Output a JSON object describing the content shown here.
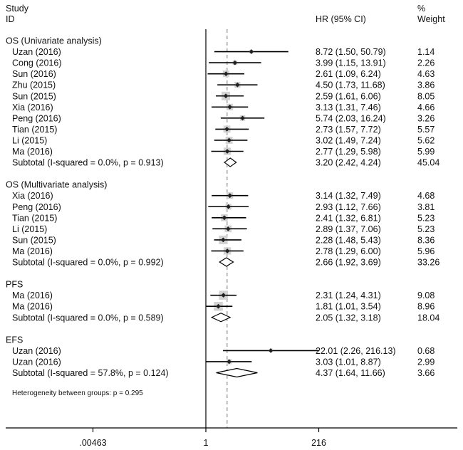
{
  "chart_data": {
    "type": "forest",
    "header": {
      "study": "Study",
      "id": "ID",
      "hr": "HR (95% CI)",
      "pct": "%",
      "weight": "Weight"
    },
    "x_axis": {
      "scale": "log",
      "ticks": [
        {
          "value": 0.00463,
          "label": ".00463"
        },
        {
          "value": 1,
          "label": "1"
        },
        {
          "value": 216,
          "label": "216"
        }
      ],
      "no_effect_line": 1,
      "overall_estimate_line": 2.75
    },
    "rows": [
      {
        "type": "group",
        "label": "OS (Univariate analysis)"
      },
      {
        "type": "study",
        "label": "Uzan (2016)",
        "hr": 8.72,
        "lo": 1.5,
        "hi": 50.79,
        "ci_text": "8.72 (1.50, 50.79)",
        "weight": "1.14",
        "w": 1.14
      },
      {
        "type": "study",
        "label": "Cong (2016)",
        "hr": 3.99,
        "lo": 1.15,
        "hi": 13.91,
        "ci_text": "3.99 (1.15, 13.91)",
        "weight": "2.26",
        "w": 2.26
      },
      {
        "type": "study",
        "label": "Sun (2016)",
        "hr": 2.61,
        "lo": 1.09,
        "hi": 6.24,
        "ci_text": "2.61 (1.09, 6.24)",
        "weight": "4.63",
        "w": 4.63
      },
      {
        "type": "study",
        "label": "Zhu (2015)",
        "hr": 4.5,
        "lo": 1.73,
        "hi": 11.68,
        "ci_text": "4.50 (1.73, 11.68)",
        "weight": "3.86",
        "w": 3.86
      },
      {
        "type": "study",
        "label": "Sun (2015)",
        "hr": 2.59,
        "lo": 1.61,
        "hi": 6.06,
        "ci_text": "2.59 (1.61, 6.06)",
        "weight": "8.05",
        "w": 8.05
      },
      {
        "type": "study",
        "label": "Xia (2016)",
        "hr": 3.13,
        "lo": 1.31,
        "hi": 7.46,
        "ci_text": "3.13 (1.31, 7.46)",
        "weight": "4.66",
        "w": 4.66
      },
      {
        "type": "study",
        "label": "Peng (2016)",
        "hr": 5.74,
        "lo": 2.03,
        "hi": 16.24,
        "ci_text": "5.74 (2.03, 16.24)",
        "weight": "3.26",
        "w": 3.26
      },
      {
        "type": "study",
        "label": "Tian (2015)",
        "hr": 2.73,
        "lo": 1.57,
        "hi": 7.72,
        "ci_text": "2.73 (1.57, 7.72)",
        "weight": "5.57",
        "w": 5.57
      },
      {
        "type": "study",
        "label": "Li (2015)",
        "hr": 3.02,
        "lo": 1.49,
        "hi": 7.24,
        "ci_text": "3.02 (1.49, 7.24)",
        "weight": "5.62",
        "w": 5.62
      },
      {
        "type": "study",
        "label": "Ma (2016)",
        "hr": 2.77,
        "lo": 1.29,
        "hi": 5.98,
        "ci_text": "2.77 (1.29, 5.98)",
        "weight": "5.99",
        "w": 5.99
      },
      {
        "type": "subtotal",
        "label": "Subtotal  (I-squared = 0.0%, p = 0.913)",
        "hr": 3.2,
        "lo": 2.42,
        "hi": 4.24,
        "ci_text": "3.20 (2.42, 4.24)",
        "weight": "45.04"
      },
      {
        "type": "blank"
      },
      {
        "type": "group",
        "label": "OS (Multivariate analysis)"
      },
      {
        "type": "study",
        "label": "Xia (2016)",
        "hr": 3.14,
        "lo": 1.32,
        "hi": 7.49,
        "ci_text": "3.14 (1.32, 7.49)",
        "weight": "4.68",
        "w": 4.68
      },
      {
        "type": "study",
        "label": "Peng (2016)",
        "hr": 2.93,
        "lo": 1.12,
        "hi": 7.66,
        "ci_text": "2.93 (1.12, 7.66)",
        "weight": "3.81",
        "w": 3.81
      },
      {
        "type": "study",
        "label": "Tian (2015)",
        "hr": 2.41,
        "lo": 1.32,
        "hi": 6.81,
        "ci_text": "2.41 (1.32, 6.81)",
        "weight": "5.23",
        "w": 5.23
      },
      {
        "type": "study",
        "label": "Li (2015)",
        "hr": 2.89,
        "lo": 1.37,
        "hi": 7.06,
        "ci_text": "2.89 (1.37, 7.06)",
        "weight": "5.23",
        "w": 5.23
      },
      {
        "type": "study",
        "label": "Sun (2015)",
        "hr": 2.28,
        "lo": 1.48,
        "hi": 5.43,
        "ci_text": "2.28 (1.48, 5.43)",
        "weight": "8.36",
        "w": 8.36
      },
      {
        "type": "study",
        "label": "Ma (2016)",
        "hr": 2.78,
        "lo": 1.29,
        "hi": 6.0,
        "ci_text": "2.78 (1.29, 6.00)",
        "weight": "5.96",
        "w": 5.96
      },
      {
        "type": "subtotal",
        "label": "Subtotal  (I-squared = 0.0%, p = 0.992)",
        "hr": 2.66,
        "lo": 1.92,
        "hi": 3.69,
        "ci_text": "2.66 (1.92, 3.69)",
        "weight": "33.26"
      },
      {
        "type": "blank"
      },
      {
        "type": "group",
        "label": "PFS"
      },
      {
        "type": "study",
        "label": "Ma (2016)",
        "hr": 2.31,
        "lo": 1.24,
        "hi": 4.31,
        "ci_text": "2.31 (1.24, 4.31)",
        "weight": "9.08",
        "w": 9.08
      },
      {
        "type": "study",
        "label": "Ma (2016)",
        "hr": 1.81,
        "lo": 1.01,
        "hi": 3.54,
        "ci_text": "1.81 (1.01, 3.54)",
        "weight": "8.96",
        "w": 8.96
      },
      {
        "type": "subtotal",
        "label": "Subtotal  (I-squared = 0.0%, p = 0.589)",
        "hr": 2.05,
        "lo": 1.32,
        "hi": 3.18,
        "ci_text": "2.05 (1.32, 3.18)",
        "weight": "18.04"
      },
      {
        "type": "blank"
      },
      {
        "type": "group",
        "label": "EFS"
      },
      {
        "type": "study",
        "label": "Uzan (2016)",
        "hr": 22.01,
        "lo": 2.26,
        "hi": 216.13,
        "ci_text": "22.01 (2.26, 216.13)",
        "weight": "0.68",
        "w": 0.68
      },
      {
        "type": "study",
        "label": "Uzan (2016)",
        "hr": 3.03,
        "lo": 1.01,
        "hi": 8.87,
        "ci_text": "3.03 (1.01, 8.87)",
        "weight": "2.99",
        "w": 2.99
      },
      {
        "type": "subtotal",
        "label": "Subtotal  (I-squared = 57.8%, p = 0.124)",
        "hr": 4.37,
        "lo": 1.64,
        "hi": 11.66,
        "ci_text": "4.37 (1.64, 11.66)",
        "weight": "3.66"
      }
    ],
    "footnote": "Heterogeneity between groups: p = 0.295",
    "colors": {
      "box": "#d3d3d3",
      "line": "#000000",
      "point": "#222222",
      "ref_line": "#888888"
    }
  }
}
